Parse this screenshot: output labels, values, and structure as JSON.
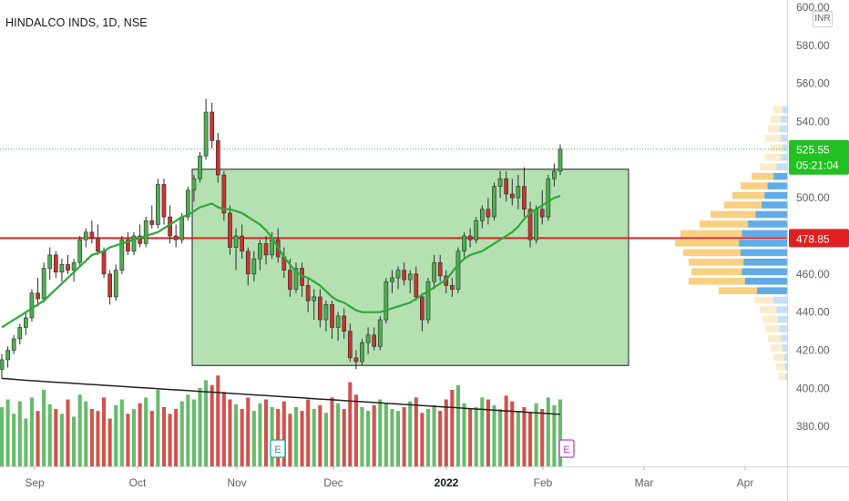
{
  "chart_data": {
    "type": "candlestick",
    "title": "HINDALCO INDS, 1D, NSE",
    "currency": "INR",
    "y_ticks": [
      "600.00",
      "580.00",
      "560.00",
      "540.00",
      "520.00",
      "500.00",
      "480.00",
      "460.00",
      "440.00",
      "420.00",
      "400.00",
      "380.00"
    ],
    "y_range": [
      370,
      604
    ],
    "x_ticks": [
      "Sep",
      "Oct",
      "Nov",
      "Dec",
      "2022",
      "Feb",
      "Mar",
      "Apr"
    ],
    "last_price": "525.55",
    "countdown": "05:21:04",
    "level_price": "478.85",
    "level_value": 478.85,
    "last_value": 525.55,
    "range_box": {
      "high": 515,
      "low": 412
    },
    "earnings_markers": [
      "E",
      "E"
    ],
    "ma_series": [
      432,
      434,
      436,
      438,
      440,
      442,
      444,
      446,
      449,
      452,
      455,
      458,
      461,
      464,
      467,
      470,
      471,
      472,
      474,
      475,
      476,
      477,
      478,
      479,
      480,
      481,
      482,
      484,
      486,
      488,
      490,
      491,
      493,
      495,
      496,
      497,
      495,
      494,
      494,
      493,
      492,
      490,
      488,
      486,
      483,
      479,
      474,
      469,
      465,
      461,
      459,
      458,
      456,
      454,
      451,
      448,
      446,
      445,
      443,
      441,
      440,
      440,
      440,
      440,
      441,
      442,
      443,
      444,
      445,
      447,
      449,
      451,
      453,
      455,
      457,
      461,
      465,
      468,
      470,
      471,
      472,
      474,
      476,
      478,
      480,
      482,
      485,
      489,
      492,
      494,
      496,
      498,
      500,
      501
    ],
    "candles": [
      {
        "o": 410,
        "h": 418,
        "l": 405,
        "c": 415
      },
      {
        "o": 415,
        "h": 422,
        "l": 411,
        "c": 420
      },
      {
        "o": 420,
        "h": 428,
        "l": 418,
        "c": 426
      },
      {
        "o": 426,
        "h": 434,
        "l": 423,
        "c": 432
      },
      {
        "o": 432,
        "h": 440,
        "l": 428,
        "c": 437
      },
      {
        "o": 437,
        "h": 452,
        "l": 435,
        "c": 450
      },
      {
        "o": 450,
        "h": 458,
        "l": 443,
        "c": 447
      },
      {
        "o": 447,
        "h": 466,
        "l": 445,
        "c": 463
      },
      {
        "o": 463,
        "h": 474,
        "l": 457,
        "c": 470
      },
      {
        "o": 470,
        "h": 472,
        "l": 458,
        "c": 461
      },
      {
        "o": 461,
        "h": 468,
        "l": 456,
        "c": 465
      },
      {
        "o": 465,
        "h": 470,
        "l": 460,
        "c": 462
      },
      {
        "o": 462,
        "h": 468,
        "l": 456,
        "c": 466
      },
      {
        "o": 466,
        "h": 480,
        "l": 464,
        "c": 478
      },
      {
        "o": 478,
        "h": 484,
        "l": 474,
        "c": 482
      },
      {
        "o": 482,
        "h": 488,
        "l": 476,
        "c": 479
      },
      {
        "o": 479,
        "h": 486,
        "l": 470,
        "c": 472
      },
      {
        "o": 472,
        "h": 474,
        "l": 458,
        "c": 460
      },
      {
        "o": 460,
        "h": 462,
        "l": 444,
        "c": 448
      },
      {
        "o": 448,
        "h": 465,
        "l": 446,
        "c": 462
      },
      {
        "o": 462,
        "h": 480,
        "l": 460,
        "c": 478
      },
      {
        "o": 478,
        "h": 482,
        "l": 470,
        "c": 472
      },
      {
        "o": 472,
        "h": 482,
        "l": 470,
        "c": 480
      },
      {
        "o": 480,
        "h": 486,
        "l": 474,
        "c": 476
      },
      {
        "o": 476,
        "h": 490,
        "l": 474,
        "c": 488
      },
      {
        "o": 488,
        "h": 496,
        "l": 484,
        "c": 486
      },
      {
        "o": 486,
        "h": 510,
        "l": 484,
        "c": 507
      },
      {
        "o": 507,
        "h": 510,
        "l": 486,
        "c": 490
      },
      {
        "o": 490,
        "h": 496,
        "l": 476,
        "c": 480
      },
      {
        "o": 480,
        "h": 486,
        "l": 474,
        "c": 478
      },
      {
        "o": 478,
        "h": 492,
        "l": 476,
        "c": 490
      },
      {
        "o": 490,
        "h": 506,
        "l": 488,
        "c": 504
      },
      {
        "o": 504,
        "h": 512,
        "l": 498,
        "c": 510
      },
      {
        "o": 510,
        "h": 524,
        "l": 508,
        "c": 522
      },
      {
        "o": 522,
        "h": 552,
        "l": 520,
        "c": 545
      },
      {
        "o": 545,
        "h": 550,
        "l": 526,
        "c": 530
      },
      {
        "o": 530,
        "h": 534,
        "l": 508,
        "c": 512
      },
      {
        "o": 512,
        "h": 514,
        "l": 488,
        "c": 492
      },
      {
        "o": 492,
        "h": 496,
        "l": 470,
        "c": 474
      },
      {
        "o": 474,
        "h": 484,
        "l": 462,
        "c": 480
      },
      {
        "o": 480,
        "h": 486,
        "l": 468,
        "c": 472
      },
      {
        "o": 472,
        "h": 474,
        "l": 454,
        "c": 460
      },
      {
        "o": 460,
        "h": 472,
        "l": 456,
        "c": 468
      },
      {
        "o": 468,
        "h": 478,
        "l": 462,
        "c": 476
      },
      {
        "o": 476,
        "h": 480,
        "l": 465,
        "c": 470
      },
      {
        "o": 470,
        "h": 482,
        "l": 468,
        "c": 478
      },
      {
        "o": 478,
        "h": 484,
        "l": 466,
        "c": 469
      },
      {
        "o": 469,
        "h": 474,
        "l": 458,
        "c": 462
      },
      {
        "o": 462,
        "h": 468,
        "l": 448,
        "c": 452
      },
      {
        "o": 452,
        "h": 466,
        "l": 450,
        "c": 463
      },
      {
        "o": 463,
        "h": 466,
        "l": 448,
        "c": 454
      },
      {
        "o": 454,
        "h": 458,
        "l": 440,
        "c": 446
      },
      {
        "o": 446,
        "h": 452,
        "l": 436,
        "c": 448
      },
      {
        "o": 448,
        "h": 452,
        "l": 432,
        "c": 436
      },
      {
        "o": 436,
        "h": 446,
        "l": 430,
        "c": 444
      },
      {
        "o": 444,
        "h": 446,
        "l": 426,
        "c": 432
      },
      {
        "o": 432,
        "h": 440,
        "l": 425,
        "c": 438
      },
      {
        "o": 438,
        "h": 442,
        "l": 426,
        "c": 430
      },
      {
        "o": 430,
        "h": 434,
        "l": 414,
        "c": 416
      },
      {
        "o": 416,
        "h": 420,
        "l": 410,
        "c": 414
      },
      {
        "o": 414,
        "h": 426,
        "l": 412,
        "c": 424
      },
      {
        "o": 424,
        "h": 432,
        "l": 418,
        "c": 428
      },
      {
        "o": 428,
        "h": 432,
        "l": 420,
        "c": 422
      },
      {
        "o": 422,
        "h": 438,
        "l": 420,
        "c": 436
      },
      {
        "o": 436,
        "h": 458,
        "l": 434,
        "c": 456
      },
      {
        "o": 456,
        "h": 462,
        "l": 450,
        "c": 458
      },
      {
        "o": 458,
        "h": 464,
        "l": 452,
        "c": 462
      },
      {
        "o": 462,
        "h": 466,
        "l": 454,
        "c": 457
      },
      {
        "o": 457,
        "h": 462,
        "l": 450,
        "c": 460
      },
      {
        "o": 460,
        "h": 464,
        "l": 446,
        "c": 448
      },
      {
        "o": 448,
        "h": 450,
        "l": 430,
        "c": 436
      },
      {
        "o": 436,
        "h": 458,
        "l": 434,
        "c": 456
      },
      {
        "o": 456,
        "h": 470,
        "l": 452,
        "c": 466
      },
      {
        "o": 466,
        "h": 470,
        "l": 456,
        "c": 459
      },
      {
        "o": 459,
        "h": 462,
        "l": 450,
        "c": 454
      },
      {
        "o": 454,
        "h": 458,
        "l": 448,
        "c": 452
      },
      {
        "o": 452,
        "h": 474,
        "l": 450,
        "c": 472
      },
      {
        "o": 472,
        "h": 482,
        "l": 468,
        "c": 480
      },
      {
        "o": 480,
        "h": 484,
        "l": 474,
        "c": 478
      },
      {
        "o": 478,
        "h": 490,
        "l": 476,
        "c": 488
      },
      {
        "o": 488,
        "h": 496,
        "l": 484,
        "c": 494
      },
      {
        "o": 494,
        "h": 500,
        "l": 486,
        "c": 490
      },
      {
        "o": 490,
        "h": 508,
        "l": 488,
        "c": 506
      },
      {
        "o": 506,
        "h": 514,
        "l": 500,
        "c": 510
      },
      {
        "o": 510,
        "h": 514,
        "l": 498,
        "c": 502
      },
      {
        "o": 502,
        "h": 510,
        "l": 496,
        "c": 500
      },
      {
        "o": 500,
        "h": 512,
        "l": 494,
        "c": 506
      },
      {
        "o": 506,
        "h": 516,
        "l": 490,
        "c": 494
      },
      {
        "o": 494,
        "h": 498,
        "l": 474,
        "c": 478
      },
      {
        "o": 478,
        "h": 496,
        "l": 476,
        "c": 494
      },
      {
        "o": 494,
        "h": 504,
        "l": 486,
        "c": 490
      },
      {
        "o": 490,
        "h": 512,
        "l": 488,
        "c": 510
      },
      {
        "o": 510,
        "h": 518,
        "l": 506,
        "c": 514
      },
      {
        "o": 514,
        "h": 528,
        "l": 512,
        "c": 525.55
      }
    ],
    "volumes": [
      62,
      70,
      55,
      68,
      50,
      72,
      58,
      80,
      65,
      60,
      55,
      70,
      52,
      75,
      68,
      60,
      58,
      72,
      50,
      64,
      70,
      55,
      60,
      66,
      72,
      58,
      80,
      62,
      55,
      60,
      68,
      75,
      70,
      82,
      90,
      85,
      95,
      78,
      70,
      65,
      60,
      72,
      58,
      66,
      70,
      62,
      60,
      68,
      55,
      62,
      58,
      70,
      60,
      64,
      56,
      72,
      66,
      60,
      88,
      75,
      62,
      58,
      64,
      70,
      66,
      60,
      58,
      62,
      68,
      72,
      56,
      60,
      64,
      58,
      70,
      80,
      85,
      66,
      60,
      62,
      72,
      70,
      64,
      60,
      74,
      68,
      58,
      62,
      56,
      66,
      60,
      72,
      64,
      70
    ],
    "volume_ma": [
      92,
      91.5,
      91,
      90.5,
      90,
      89.6,
      89.2,
      88.8,
      88.4,
      88,
      87.6,
      87.2,
      86.8,
      86.4,
      86,
      85.6,
      85.2,
      84.8,
      84.4,
      84,
      83.6,
      83.2,
      82.8,
      82.4,
      82,
      81.6,
      81.2,
      80.8,
      80.4,
      80,
      79.6,
      79.2,
      78.8,
      78.4,
      78,
      77.6,
      77.2,
      76.8,
      76.4,
      76,
      75.6,
      75.2,
      74.8,
      74.4,
      74,
      73.6,
      73.2,
      72.8,
      72.4,
      72,
      71.6,
      71.2,
      70.8,
      70.4,
      70,
      69.6,
      69.2,
      68.8,
      68.4,
      68,
      67.6,
      67.2,
      66.8,
      66.4,
      66,
      65.6,
      65.2,
      64.8,
      64.4,
      64,
      63.6,
      63.2,
      62.8,
      62.4,
      62,
      61.6,
      61.2,
      60.8,
      60.4,
      60,
      59.6,
      59.2,
      58.8,
      58.4,
      58,
      57.6,
      57.2,
      56.8,
      56.4,
      56,
      55.6,
      55.2,
      54.8,
      54.4
    ],
    "volume_profile": [
      {
        "price": 546,
        "up": 0.06,
        "down": 0.1
      },
      {
        "price": 541,
        "up": 0.08,
        "down": 0.12
      },
      {
        "price": 536,
        "up": 0.1,
        "down": 0.14
      },
      {
        "price": 531,
        "up": 0.08,
        "down": 0.16
      },
      {
        "price": 526,
        "up": 0.06,
        "down": 0.12
      },
      {
        "price": 521,
        "up": 0.08,
        "down": 0.16
      },
      {
        "price": 516,
        "up": 0.14,
        "down": 0.2
      },
      {
        "price": 511,
        "up": 0.18,
        "down": 0.26
      },
      {
        "price": 506,
        "up": 0.26,
        "down": 0.34
      },
      {
        "price": 501,
        "up": 0.3,
        "down": 0.4
      },
      {
        "price": 496,
        "up": 0.34,
        "down": 0.46
      },
      {
        "price": 491,
        "up": 0.42,
        "down": 0.56
      },
      {
        "price": 486,
        "up": 0.52,
        "down": 0.64
      },
      {
        "price": 481,
        "up": 0.6,
        "down": 0.78
      },
      {
        "price": 476,
        "up": 0.64,
        "down": 0.82
      },
      {
        "price": 471,
        "up": 0.62,
        "down": 0.76
      },
      {
        "price": 466,
        "up": 0.58,
        "down": 0.72
      },
      {
        "price": 461,
        "up": 0.6,
        "down": 0.7
      },
      {
        "price": 456,
        "up": 0.56,
        "down": 0.72
      },
      {
        "price": 451,
        "up": 0.4,
        "down": 0.5
      },
      {
        "price": 446,
        "up": 0.18,
        "down": 0.24
      },
      {
        "price": 441,
        "up": 0.14,
        "down": 0.2
      },
      {
        "price": 436,
        "up": 0.12,
        "down": 0.18
      },
      {
        "price": 431,
        "up": 0.1,
        "down": 0.16
      },
      {
        "price": 426,
        "up": 0.08,
        "down": 0.14
      },
      {
        "price": 421,
        "up": 0.06,
        "down": 0.12
      },
      {
        "price": 416,
        "up": 0.04,
        "down": 0.1
      },
      {
        "price": 411,
        "up": 0.03,
        "down": 0.08
      },
      {
        "price": 406,
        "up": 0.02,
        "down": 0.06
      }
    ],
    "colors": {
      "up": "#4caf50",
      "down": "#c8352f",
      "ma": "#2da83a",
      "level": "#e02020",
      "box_fill": "#a8dca4",
      "box_stroke": "#1b1b1b",
      "last_price_bg": "#22c022",
      "level_bg": "#e02020",
      "vp_up": "#5aa7e8",
      "vp_down": "#f7c86a"
    }
  }
}
